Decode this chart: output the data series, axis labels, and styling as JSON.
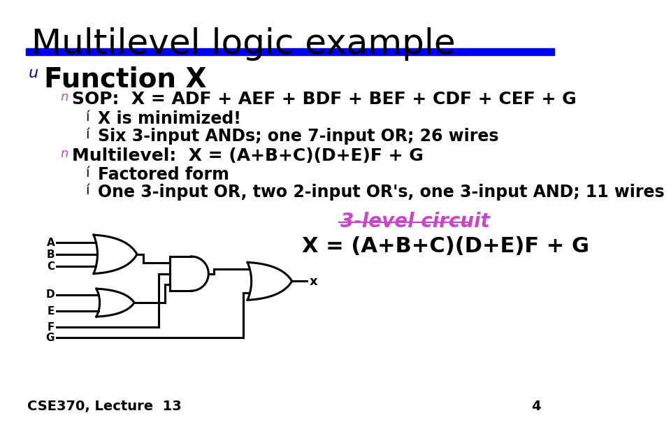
{
  "title": "Multilevel logic example",
  "title_fontsize": 36,
  "title_color": "#000000",
  "blue_bar_color": "#0000FF",
  "bullet1_text": "Function X",
  "bullet1_color": "#0000CC",
  "bullet1_fontsize": 28,
  "sub1_label": "SOP:  X = ADF + AEF + BDF + BEF + CDF + CEF + G",
  "sub1_color": "#CC44CC",
  "sub1_fontsize": 18,
  "sub1a": "X is minimized!",
  "sub1b": "Six 3-input ANDs; one 7-input OR; 26 wires",
  "sub2_label": "Multilevel:  X = (A+B+C)(D+E)F + G",
  "sub2_color": "#CC44CC",
  "sub2_fontsize": 18,
  "sub2a": "Factored form",
  "sub2b": "One 3-input OR, two 2-input OR's, one 3-input AND; 11 wires",
  "sub_indent_fontsize": 17,
  "circuit_label": "3-level circuit",
  "circuit_label_color": "#CC44CC",
  "circuit_label_fontsize": 20,
  "circuit_eq": "X = (A+B+C)(D+E)F + G",
  "circuit_eq_fontsize": 22,
  "footer_text": "CSE370, Lecture  13",
  "footer_page": "4",
  "footer_fontsize": 14,
  "background_color": "#FFFFFF"
}
